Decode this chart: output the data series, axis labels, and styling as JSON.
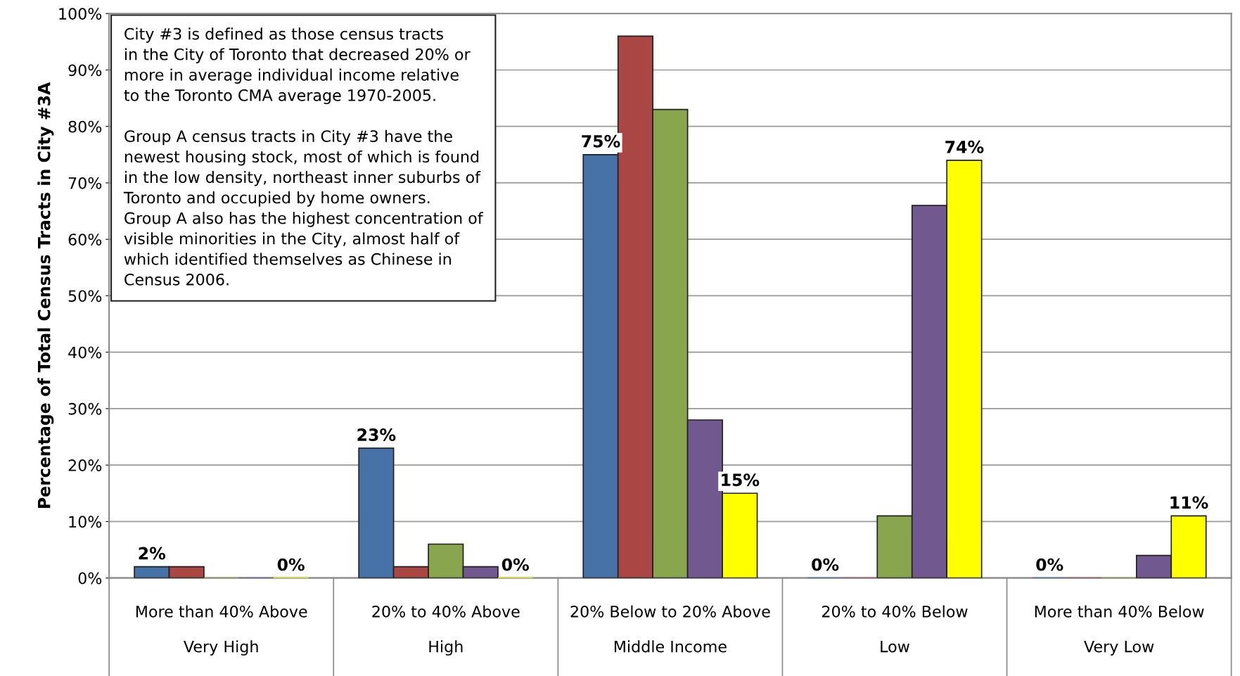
{
  "chart_data": {
    "type": "bar",
    "ylabel": "Percentage of Total Census Tracts in City #3A",
    "categories": [
      "More than 40% Above\n\nVery High",
      "20% to 40% Above\n\nHigh",
      "20% Below to 20% Above\n\nMiddle Income",
      "20% to 40% Below\n\nLow",
      "More than 40% Below\n\nVery Low"
    ],
    "series": [
      {
        "color": "#4672a7",
        "values": [
          2,
          23,
          75,
          0,
          0
        ],
        "value_labels": [
          "2%",
          "23%",
          "75%",
          "0%",
          "0%"
        ]
      },
      {
        "color": "#aa4643",
        "values": [
          2,
          2,
          96,
          0,
          0
        ]
      },
      {
        "color": "#89a54e",
        "values": [
          0,
          6,
          83,
          11,
          0
        ]
      },
      {
        "color": "#71588f",
        "values": [
          0,
          2,
          28,
          66,
          4
        ]
      },
      {
        "color": "#ffff00",
        "values": [
          0,
          0,
          15,
          74,
          11
        ],
        "value_labels": [
          "0%",
          "0%",
          "15%",
          "74%",
          "11%"
        ]
      }
    ],
    "ylim": [
      0,
      100
    ],
    "yticks": [
      {
        "value": 0,
        "label": "0%"
      },
      {
        "value": 10,
        "label": "10%"
      },
      {
        "value": 20,
        "label": "20%"
      },
      {
        "value": 30,
        "label": "30%"
      },
      {
        "value": 40,
        "label": "40%"
      },
      {
        "value": 50,
        "label": "50%"
      },
      {
        "value": 60,
        "label": "60%"
      },
      {
        "value": 70,
        "label": "70%"
      },
      {
        "value": 80,
        "label": "80%"
      },
      {
        "value": 90,
        "label": "90%"
      },
      {
        "value": 100,
        "label": "100%"
      }
    ],
    "grid": "y",
    "legend": false,
    "annotations": [
      "City #3 is defined as those census tracts\nin the City of Toronto that decreased 20% or\nmore in average individual income relative\nto the Toronto CMA average 1970-2005.\n\nGroup A census tracts in City #3 have the\nnewest housing stock, most of which is found\nin the low density, northeast inner suburbs of\nToronto and occupied by home owners.\nGroup A also has the highest concentration of\nvisible minorities in the City, almost half of\nwhich identified themselves as Chinese in\nCensus 2006."
    ]
  }
}
